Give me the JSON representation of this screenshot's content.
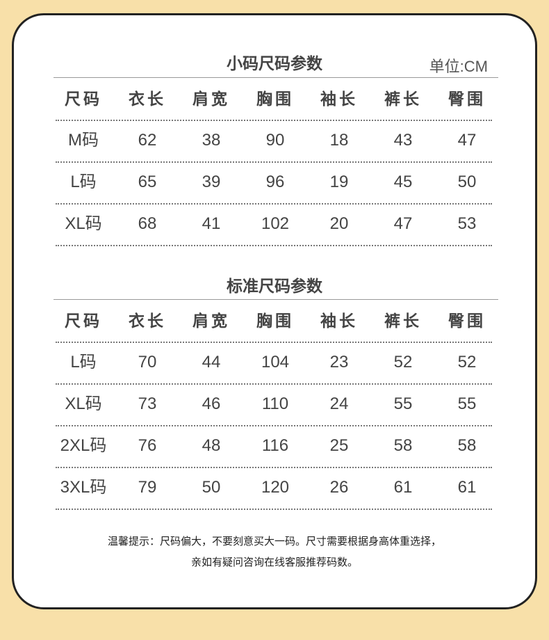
{
  "small": {
    "title": "小码尺码参数",
    "unit": "单位:CM",
    "headers": [
      "尺码",
      "衣长",
      "肩宽",
      "胸围",
      "袖长",
      "裤长",
      "臀围"
    ],
    "rows": [
      [
        "M码",
        "62",
        "38",
        "90",
        "18",
        "43",
        "47"
      ],
      [
        "L码",
        "65",
        "39",
        "96",
        "19",
        "45",
        "50"
      ],
      [
        "XL码",
        "68",
        "41",
        "102",
        "20",
        "47",
        "53"
      ]
    ]
  },
  "standard": {
    "title": "标准尺码参数",
    "headers": [
      "尺码",
      "衣长",
      "肩宽",
      "胸围",
      "袖长",
      "裤长",
      "臀围"
    ],
    "rows": [
      [
        "L码",
        "70",
        "44",
        "104",
        "23",
        "52",
        "52"
      ],
      [
        "XL码",
        "73",
        "46",
        "110",
        "24",
        "55",
        "55"
      ],
      [
        "2XL码",
        "76",
        "48",
        "116",
        "25",
        "58",
        "58"
      ],
      [
        "3XL码",
        "79",
        "50",
        "120",
        "26",
        "61",
        "61"
      ]
    ]
  },
  "notes": [
    "温馨提示：尺码偏大，不要刻意买大一码。尺寸需要根据身高体重选择，",
    "亲如有疑问咨询在线客服推荐码数。"
  ]
}
